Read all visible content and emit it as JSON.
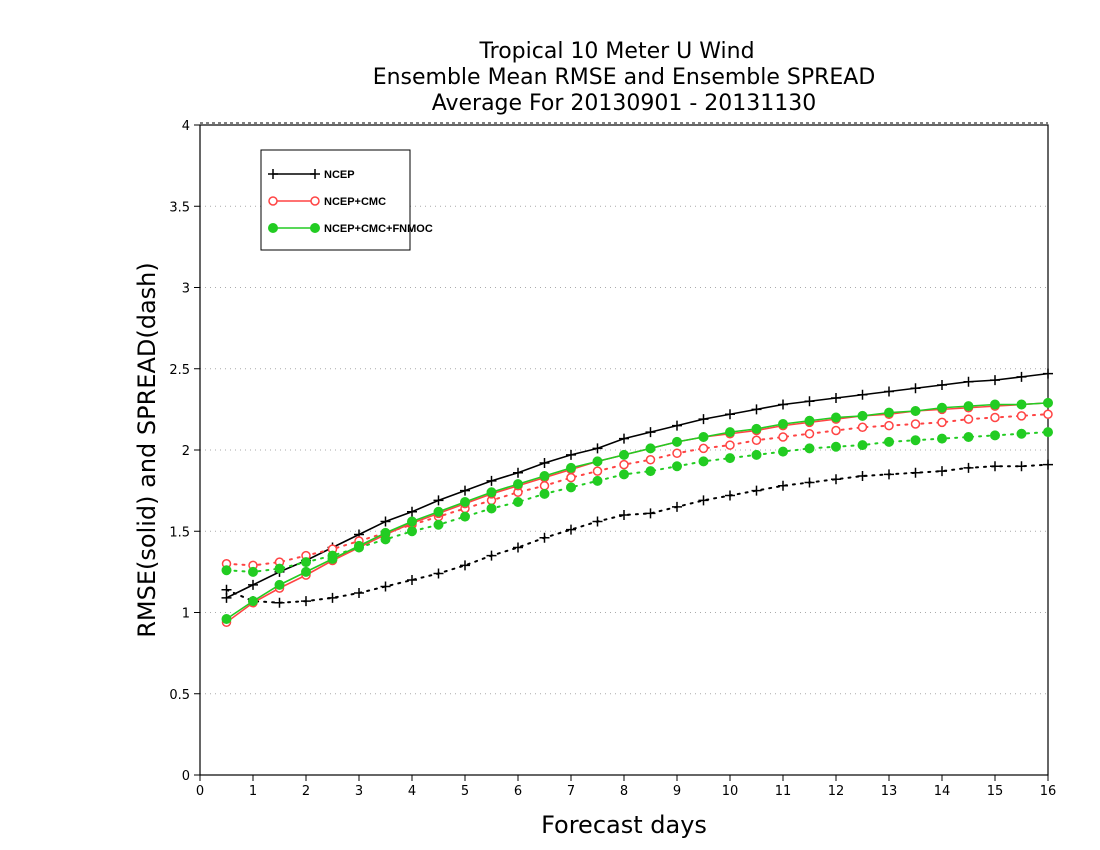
{
  "chart_data": {
    "type": "line",
    "title_lines": [
      "Tropical 10 Meter U Wind",
      "Ensemble Mean RMSE and Ensemble SPREAD",
      "Average For 20130901 - 20131130"
    ],
    "xlabel": "Forecast days",
    "ylabel": "RMSE(solid) and SPREAD(dash)",
    "xlim": [
      0,
      16
    ],
    "ylim": [
      0,
      4
    ],
    "x_ticks": [
      0,
      1,
      2,
      3,
      4,
      5,
      6,
      7,
      8,
      9,
      10,
      11,
      12,
      13,
      14,
      15,
      16
    ],
    "y_ticks": [
      0,
      0.5,
      1,
      1.5,
      2,
      2.5,
      3,
      3.5,
      4
    ],
    "y_tick_labels": [
      "0",
      "0.5",
      "1",
      "1.5",
      "2",
      "2.5",
      "3",
      "3.5",
      "4"
    ],
    "grid": "horizontal dotted",
    "legend_position": "top-left",
    "x": [
      0.5,
      1,
      1.5,
      2,
      2.5,
      3,
      3.5,
      4,
      4.5,
      5,
      5.5,
      6,
      6.5,
      7,
      7.5,
      8,
      8.5,
      9,
      9.5,
      10,
      10.5,
      11,
      11.5,
      12,
      12.5,
      13,
      13.5,
      14,
      14.5,
      15,
      15.5,
      16
    ],
    "series": [
      {
        "name": "NCEP",
        "color": "#000000",
        "marker": "plus",
        "rmse": [
          1.09,
          1.17,
          1.25,
          1.32,
          1.4,
          1.48,
          1.56,
          1.62,
          1.69,
          1.75,
          1.81,
          1.86,
          1.92,
          1.97,
          2.01,
          2.07,
          2.11,
          2.15,
          2.19,
          2.22,
          2.25,
          2.28,
          2.3,
          2.32,
          2.34,
          2.36,
          2.38,
          2.4,
          2.42,
          2.43,
          2.45,
          2.47
        ],
        "spread": [
          1.14,
          1.07,
          1.06,
          1.07,
          1.09,
          1.12,
          1.16,
          1.2,
          1.24,
          1.29,
          1.35,
          1.4,
          1.46,
          1.51,
          1.56,
          1.6,
          1.61,
          1.65,
          1.69,
          1.72,
          1.75,
          1.78,
          1.8,
          1.82,
          1.84,
          1.85,
          1.86,
          1.87,
          1.89,
          1.9,
          1.9,
          1.91
        ]
      },
      {
        "name": "NCEP+CMC",
        "color": "#ff4444",
        "marker": "open-circle",
        "rmse": [
          0.94,
          1.06,
          1.15,
          1.23,
          1.32,
          1.4,
          1.48,
          1.55,
          1.61,
          1.67,
          1.73,
          1.78,
          1.83,
          1.88,
          1.93,
          1.97,
          2.01,
          2.05,
          2.08,
          2.1,
          2.12,
          2.15,
          2.17,
          2.19,
          2.21,
          2.22,
          2.24,
          2.25,
          2.26,
          2.27,
          2.28,
          2.29
        ],
        "spread": [
          1.3,
          1.29,
          1.31,
          1.35,
          1.39,
          1.44,
          1.49,
          1.54,
          1.59,
          1.64,
          1.69,
          1.74,
          1.78,
          1.83,
          1.87,
          1.91,
          1.94,
          1.98,
          2.01,
          2.03,
          2.06,
          2.08,
          2.1,
          2.12,
          2.14,
          2.15,
          2.16,
          2.17,
          2.19,
          2.2,
          2.21,
          2.22
        ]
      },
      {
        "name": "NCEP+CMC+FNMOC",
        "color": "#22cc22",
        "marker": "filled-circle",
        "rmse": [
          0.96,
          1.07,
          1.17,
          1.25,
          1.33,
          1.41,
          1.49,
          1.56,
          1.62,
          1.68,
          1.74,
          1.79,
          1.84,
          1.89,
          1.93,
          1.97,
          2.01,
          2.05,
          2.08,
          2.11,
          2.13,
          2.16,
          2.18,
          2.2,
          2.21,
          2.23,
          2.24,
          2.26,
          2.27,
          2.28,
          2.28,
          2.29
        ],
        "spread": [
          1.26,
          1.25,
          1.27,
          1.31,
          1.35,
          1.4,
          1.45,
          1.5,
          1.54,
          1.59,
          1.64,
          1.68,
          1.73,
          1.77,
          1.81,
          1.85,
          1.87,
          1.9,
          1.93,
          1.95,
          1.97,
          1.99,
          2.01,
          2.02,
          2.03,
          2.05,
          2.06,
          2.07,
          2.08,
          2.09,
          2.1,
          2.11
        ]
      }
    ]
  }
}
